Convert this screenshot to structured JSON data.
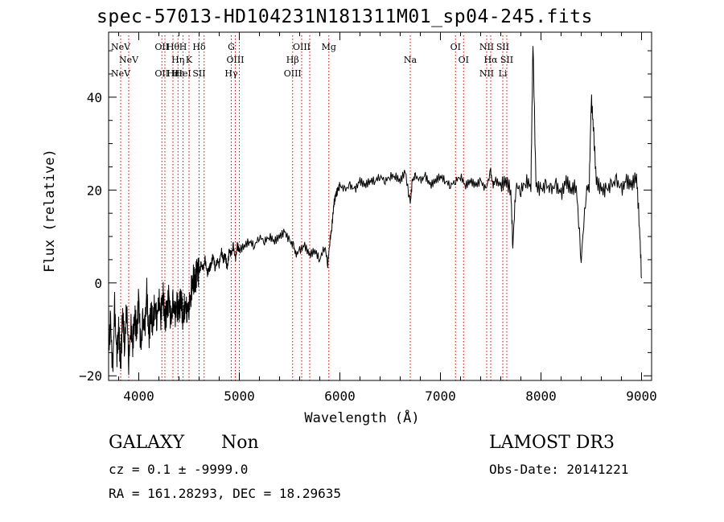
{
  "chart_data": {
    "type": "line",
    "title": "spec-57013-HD104231N181311M01_sp04-245.fits",
    "xlabel": "Wavelength (Å)",
    "ylabel": "Flux (relative)",
    "xlim": [
      3700,
      9100
    ],
    "ylim": [
      -21,
      54
    ],
    "xticks": [
      4000,
      5000,
      6000,
      7000,
      8000,
      9000
    ],
    "yticks": [
      -20,
      0,
      20,
      40
    ],
    "series": [
      {
        "name": "spectrum",
        "x": [
          3700,
          3720,
          3740,
          3760,
          3780,
          3800,
          3820,
          3840,
          3860,
          3880,
          3900,
          3920,
          3940,
          3960,
          3980,
          4000,
          4020,
          4040,
          4060,
          4080,
          4100,
          4120,
          4140,
          4160,
          4180,
          4200,
          4220,
          4240,
          4260,
          4280,
          4300,
          4320,
          4340,
          4360,
          4380,
          4400,
          4420,
          4440,
          4460,
          4480,
          4500,
          4520,
          4540,
          4560,
          4580,
          4600,
          4620,
          4640,
          4660,
          4680,
          4700,
          4720,
          4740,
          4760,
          4780,
          4800,
          4820,
          4840,
          4860,
          4880,
          4900,
          4920,
          4940,
          4960,
          4980,
          5000,
          5050,
          5100,
          5150,
          5200,
          5250,
          5300,
          5350,
          5400,
          5450,
          5500,
          5540,
          5560,
          5600,
          5650,
          5700,
          5750,
          5800,
          5850,
          5880,
          5900,
          5920,
          5940,
          5960,
          5980,
          6000,
          6050,
          6100,
          6150,
          6200,
          6250,
          6300,
          6350,
          6400,
          6450,
          6500,
          6550,
          6600,
          6650,
          6700,
          6720,
          6750,
          6800,
          6850,
          6900,
          6950,
          7000,
          7050,
          7100,
          7150,
          7200,
          7250,
          7300,
          7350,
          7400,
          7450,
          7500,
          7520,
          7550,
          7600,
          7650,
          7700,
          7720,
          7750,
          7800,
          7850,
          7900,
          7920,
          7950,
          8000,
          8050,
          8100,
          8150,
          8200,
          8250,
          8300,
          8350,
          8400,
          8450,
          8480,
          8500,
          8520,
          8550,
          8600,
          8650,
          8700,
          8750,
          8800,
          8850,
          8900,
          8950,
          8980,
          9000
        ],
        "y": [
          -15,
          -8,
          -20,
          -5,
          -16,
          -10,
          -18,
          -6,
          -14,
          -4,
          -17,
          -9,
          -13,
          -7,
          -11,
          -3,
          -15,
          -8,
          -10,
          -2,
          -12,
          -6,
          -9,
          -4,
          -8,
          -3,
          -7,
          -2,
          -8,
          -6,
          -3,
          -9,
          -4,
          -7,
          -5,
          -6,
          -3,
          -8,
          -4,
          -6,
          -5,
          -2,
          1,
          0,
          3,
          2,
          4,
          3,
          5,
          2,
          3,
          4,
          6,
          3,
          5,
          4,
          7,
          5,
          6,
          3,
          7,
          6,
          8,
          5,
          8,
          7,
          8,
          9,
          8,
          10,
          9,
          10,
          9,
          10,
          11,
          9,
          8,
          6,
          7,
          8,
          6,
          7,
          5,
          8,
          4,
          9,
          12,
          17,
          19,
          20,
          21,
          20,
          21,
          20,
          22,
          21,
          22,
          22,
          23,
          22,
          23,
          23,
          22,
          24,
          17,
          22,
          23,
          22,
          23,
          21,
          22,
          23,
          22,
          21,
          22,
          23,
          21,
          22,
          21,
          22,
          20,
          24,
          21,
          22,
          21,
          22,
          20,
          8,
          21,
          20,
          22,
          21,
          52,
          21,
          20,
          21,
          20,
          21,
          19,
          22,
          20,
          21,
          5,
          20,
          21,
          40,
          34,
          22,
          20,
          20,
          21,
          22,
          20,
          22,
          21,
          23,
          12,
          1
        ],
        "color": "#000000"
      }
    ],
    "lines": [
      {
        "wl": 3820,
        "top": "NeV",
        "bottom": "NeV"
      },
      {
        "wl": 3900,
        "top": "NeV",
        "bottom": ""
      },
      {
        "wl": 4230,
        "top": "OII",
        "bottom": "OII"
      },
      {
        "wl": 4260,
        "top": "",
        "bottom": ""
      },
      {
        "wl": 4340,
        "top": "Hθ",
        "bottom": "Hε"
      },
      {
        "wl": 4390,
        "top": "Hη",
        "bottom": "Hε"
      },
      {
        "wl": 4440,
        "top": "H",
        "bottom": "HeI"
      },
      {
        "wl": 4500,
        "top": "K",
        "bottom": ""
      },
      {
        "wl": 4600,
        "top": "Hδ",
        "bottom": "SII"
      },
      {
        "wl": 4650,
        "top": "",
        "bottom": ""
      },
      {
        "wl": 4920,
        "top": "G",
        "bottom": "Hγ"
      },
      {
        "wl": 4960,
        "top": "OIII",
        "bottom": ""
      },
      {
        "wl": 5000,
        "top": "",
        "bottom": ""
      },
      {
        "wl": 5530,
        "top": "Hβ",
        "bottom": "OIII"
      },
      {
        "wl": 5620,
        "top": "OIII",
        "bottom": ""
      },
      {
        "wl": 5700,
        "top": "",
        "bottom": ""
      },
      {
        "wl": 5890,
        "top": "Mg",
        "bottom": ""
      },
      {
        "wl": 6700,
        "top": "Na",
        "bottom": ""
      },
      {
        "wl": 7150,
        "top": "OI",
        "bottom": ""
      },
      {
        "wl": 7230,
        "top": "OI",
        "bottom": ""
      },
      {
        "wl": 7460,
        "top": "NII",
        "bottom": "NII"
      },
      {
        "wl": 7500,
        "top": "Hα",
        "bottom": ""
      },
      {
        "wl": 7620,
        "top": "SII",
        "bottom": "Li"
      },
      {
        "wl": 7660,
        "top": "SII",
        "bottom": ""
      }
    ]
  },
  "info": {
    "object_class": "GALAXY",
    "subclass": "Non",
    "survey": "LAMOST DR3",
    "cz": "cz = 0.1 ± -9999.0",
    "obs_date": "Obs-Date: 20141221",
    "coords": "RA = 161.28293, DEC =  18.29635"
  },
  "colors": {
    "spectrum": "#000000",
    "line_marker": "#cc0000",
    "axis": "#000000"
  }
}
